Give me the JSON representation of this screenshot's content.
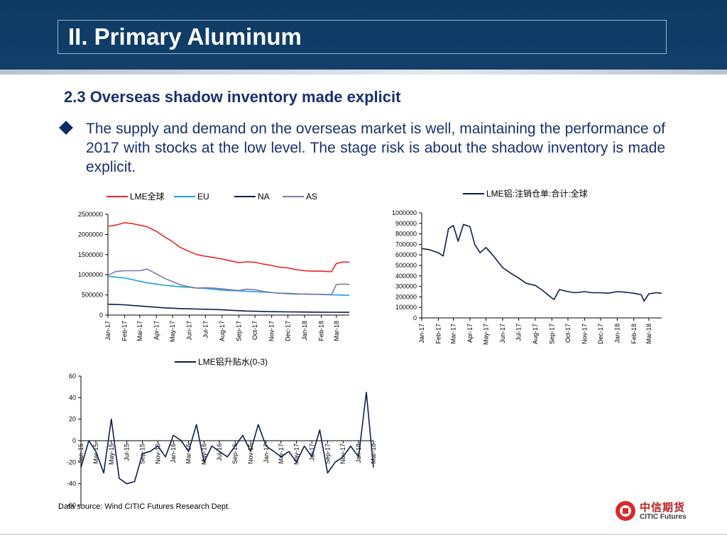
{
  "slide": {
    "title": "II. Primary Aluminum",
    "section_heading": "2.3  Overseas shadow inventory made explicit",
    "bullet": "The supply and demand on the overseas market is well, maintaining the performance of 2017 with stocks at the low level. The stage risk is about the shadow inventory is made explicit.",
    "source": "Data source: Wind    CITIC Futures Research Dept.",
    "logo": {
      "cn": "中信期货",
      "en": "CITIC Futures",
      "icon": "citic-logo-icon"
    },
    "colors": {
      "banner": "#123f6b",
      "heading": "#1a2f6e",
      "bullet": "#0d2a66",
      "logo_red": "#d62b2b"
    }
  },
  "chart_data": [
    {
      "type": "line",
      "title": "",
      "x": [
        "2017-01-01",
        "2017-01-15",
        "2017-02-01",
        "2017-02-15",
        "2017-03-01",
        "2017-03-15",
        "2017-04-01",
        "2017-04-15",
        "2017-05-01",
        "2017-05-15",
        "2017-06-01",
        "2017-06-15",
        "2017-07-01",
        "2017-07-15",
        "2017-08-01",
        "2017-08-15",
        "2017-09-01",
        "2017-09-15",
        "2017-10-01",
        "2017-10-15",
        "2017-11-01",
        "2017-11-15",
        "2017-12-01",
        "2017-12-15",
        "2018-01-01",
        "2018-01-15",
        "2018-02-01",
        "2018-02-15",
        "2018-02-20",
        "2018-03-01",
        "2018-03-15",
        "2018-03-25"
      ],
      "x_ticks": [
        "Jan-17",
        "Feb-17",
        "Mar-17",
        "Apr-17",
        "May-17",
        "Jun-17",
        "Jul-17",
        "Aug-17",
        "Sep-17",
        "Oct-17",
        "Nov-17",
        "Dec-17",
        "Jan-18",
        "Feb-18",
        "Mar-18"
      ],
      "ylim": [
        0,
        2500000
      ],
      "y_ticks": [
        "0",
        "500000",
        "1000000",
        "1500000",
        "2000000",
        "2500000"
      ],
      "grid": false,
      "legend": "top",
      "series": [
        {
          "name": "LME全球",
          "color": "#e8262a",
          "values": [
            2200000,
            2230000,
            2290000,
            2270000,
            2230000,
            2190000,
            2080000,
            1950000,
            1820000,
            1680000,
            1580000,
            1500000,
            1460000,
            1430000,
            1390000,
            1350000,
            1300000,
            1320000,
            1310000,
            1270000,
            1230000,
            1190000,
            1170000,
            1130000,
            1100000,
            1090000,
            1090000,
            1080000,
            1080000,
            1280000,
            1320000,
            1310000
          ]
        },
        {
          "name": "EU",
          "color": "#1fa0dc",
          "values": [
            960000,
            945000,
            920000,
            880000,
            840000,
            800000,
            770000,
            740000,
            720000,
            700000,
            690000,
            670000,
            660000,
            640000,
            620000,
            610000,
            600000,
            590000,
            580000,
            570000,
            560000,
            545000,
            540000,
            530000,
            520000,
            515000,
            510000,
            505000,
            500000,
            500000,
            495000,
            490000
          ]
        },
        {
          "name": "NA",
          "color": "#0c1f4a",
          "values": [
            270000,
            262000,
            255000,
            240000,
            225000,
            210000,
            195000,
            180000,
            170000,
            160000,
            155000,
            150000,
            145000,
            140000,
            130000,
            120000,
            110000,
            100000,
            95000,
            90000,
            85000,
            82000,
            80000,
            78000,
            76000,
            74000,
            72000,
            70000,
            70000,
            70000,
            68000,
            68000
          ]
        },
        {
          "name": "AS",
          "color": "#7a7aa8",
          "values": [
            980000,
            1080000,
            1100000,
            1100000,
            1100000,
            1140000,
            1020000,
            920000,
            830000,
            750000,
            700000,
            670000,
            680000,
            670000,
            650000,
            630000,
            610000,
            640000,
            630000,
            590000,
            560000,
            540000,
            530000,
            520000,
            525000,
            520000,
            515000,
            510000,
            510000,
            760000,
            770000,
            760000
          ]
        }
      ]
    },
    {
      "type": "line",
      "title": "",
      "x": [
        "2017-01-01",
        "2017-01-15",
        "2017-02-01",
        "2017-02-10",
        "2017-02-20",
        "2017-03-01",
        "2017-03-10",
        "2017-03-20",
        "2017-04-01",
        "2017-04-10",
        "2017-04-20",
        "2017-05-01",
        "2017-05-15",
        "2017-06-01",
        "2017-06-15",
        "2017-07-01",
        "2017-07-15",
        "2017-08-01",
        "2017-08-15",
        "2017-09-01",
        "2017-09-05",
        "2017-09-15",
        "2017-10-01",
        "2017-10-15",
        "2017-11-01",
        "2017-11-15",
        "2017-12-01",
        "2017-12-15",
        "2018-01-01",
        "2018-01-15",
        "2018-02-01",
        "2018-02-15",
        "2018-02-20",
        "2018-03-01",
        "2018-03-15",
        "2018-03-25"
      ],
      "x_ticks": [
        "Jan-17",
        "Feb-17",
        "Mar-17",
        "Apr-17",
        "May-17",
        "Jun-17",
        "Jul-17",
        "Aug-17",
        "Sep-17",
        "Oct-17",
        "Nov-17",
        "Dec-17",
        "Jan-18",
        "Feb-18",
        "Mar-18"
      ],
      "ylim": [
        0,
        1000000
      ],
      "y_ticks": [
        "0",
        "100000",
        "200000",
        "300000",
        "400000",
        "500000",
        "600000",
        "700000",
        "800000",
        "900000",
        "1000000"
      ],
      "grid": false,
      "legend": "top",
      "series": [
        {
          "name": "LME铝:注销仓单:合计:全球",
          "color": "#0c1f4a",
          "values": [
            660000,
            650000,
            620000,
            590000,
            850000,
            880000,
            730000,
            890000,
            870000,
            700000,
            620000,
            670000,
            590000,
            480000,
            430000,
            380000,
            330000,
            310000,
            260000,
            190000,
            175000,
            270000,
            250000,
            240000,
            250000,
            240000,
            240000,
            235000,
            250000,
            245000,
            235000,
            220000,
            160000,
            230000,
            240000,
            235000
          ]
        }
      ]
    },
    {
      "type": "line",
      "title": "",
      "x": [
        "2015-01",
        "2015-02",
        "2015-03",
        "2015-04",
        "2015-05",
        "2015-06",
        "2015-07",
        "2015-08",
        "2015-09",
        "2015-10",
        "2015-11",
        "2015-12",
        "2016-01",
        "2016-02",
        "2016-03",
        "2016-04",
        "2016-05",
        "2016-06",
        "2016-07",
        "2016-08",
        "2016-09",
        "2016-10",
        "2016-11",
        "2016-12",
        "2017-01",
        "2017-02",
        "2017-03",
        "2017-04",
        "2017-05",
        "2017-06",
        "2017-07",
        "2017-08",
        "2017-09",
        "2017-10",
        "2017-11",
        "2017-12",
        "2018-01",
        "2018-02",
        "2018-03"
      ],
      "x_ticks": [
        "Jan-15",
        "Mar-15",
        "May-15",
        "Jul-15",
        "Sep-15",
        "Nov-15",
        "Jan-16",
        "Mar-16",
        "May-16",
        "Jul-16",
        "Sep-16",
        "Nov-16",
        "Jan-17",
        "Mar-17",
        "May-17",
        "Jul-17",
        "Sep-17",
        "Nov-17",
        "Jan-18",
        "Mar-18"
      ],
      "ylim": [
        -60,
        60
      ],
      "y_ticks": [
        "-60",
        "-40",
        "-20",
        "0",
        "20",
        "40",
        "60"
      ],
      "grid": false,
      "legend": "top",
      "series": [
        {
          "name": "LME铝升贴水(0-3)",
          "color": "#0c1f4a",
          "values": [
            -25,
            0,
            -10,
            -30,
            20,
            -35,
            -40,
            -38,
            -12,
            -10,
            -5,
            -15,
            5,
            0,
            -10,
            15,
            -20,
            -5,
            -10,
            -15,
            -5,
            5,
            -10,
            15,
            -5,
            -10,
            -15,
            -10,
            -20,
            -5,
            -15,
            10,
            -30,
            -20,
            -15,
            -5,
            -15,
            45,
            -25
          ]
        }
      ]
    }
  ]
}
